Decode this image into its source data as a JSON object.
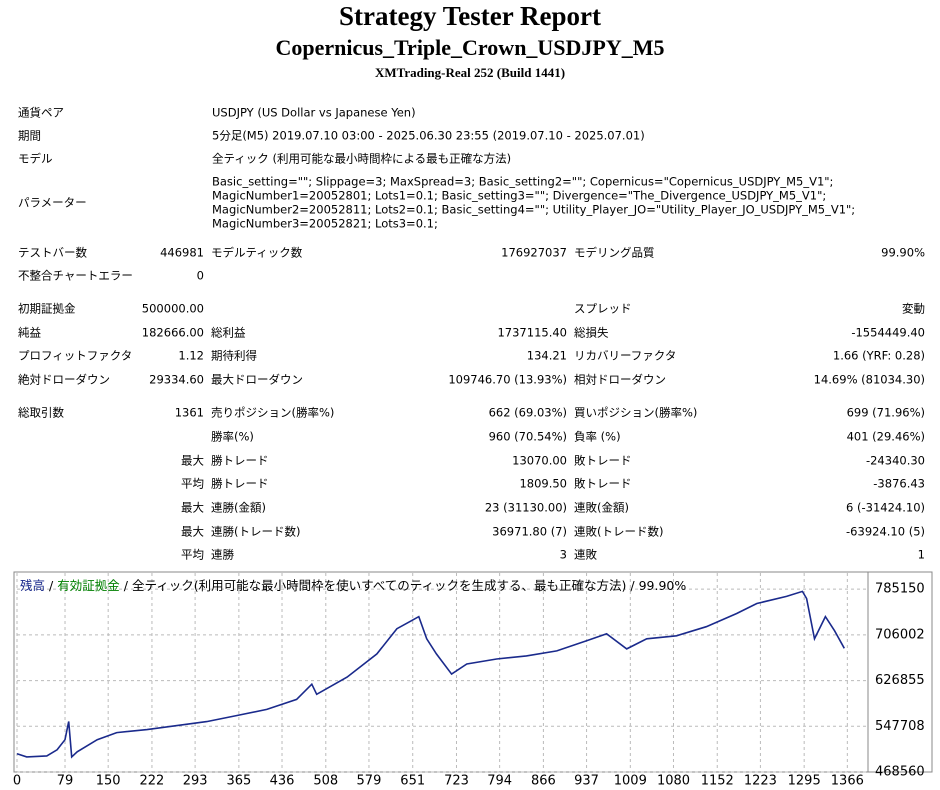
{
  "header": {
    "title": "Strategy Tester Report",
    "subtitle": "Copernicus_Triple_Crown_USDJPY_M5",
    "build": "XMTrading-Real 252 (Build 1441)"
  },
  "info": [
    [
      "通貨ペア",
      "USDJPY (US Dollar vs Japanese Yen)"
    ],
    [
      "期間",
      "5分足(M5) 2019.07.10 03:00 - 2025.06.30 23:55 (2019.07.10 - 2025.07.01)"
    ],
    [
      "モデル",
      "全ティック (利用可能な最小時間枠による最も正確な方法)"
    ]
  ],
  "parameters": {
    "label": "パラメーター",
    "lines": [
      "Basic_setting=\"\"; Slippage=3; MaxSpread=3; Basic_setting2=\"\"; Copernicus=\"Copernicus_USDJPY_M5_V1\";",
      "MagicNumber1=20052801; Lots1=0.1; Basic_setting3=\"\"; Divergence=\"The_Divergence_USDJPY_M5_V1\";",
      "MagicNumber2=20052811; Lots2=0.1; Basic_setting4=\"\"; Utility_Player_JO=\"Utility_Player_JO_USDJPY_M5_V1\";",
      "MagicNumber3=20052821; Lots3=0.1;"
    ]
  },
  "table": {
    "rows": [
      [
        "テストバー数",
        "446981",
        "モデルティック数",
        "176927037",
        "モデリング品質",
        "99.90%"
      ],
      [
        "不整合チャートエラー",
        "0",
        null,
        null,
        null,
        null
      ],
      [
        "初期証拠金",
        "500000.00",
        null,
        null,
        "スプレッド",
        "変動"
      ],
      [
        "純益",
        "182666.00",
        "総利益",
        "1737115.40",
        "総損失",
        "-1554449.40"
      ],
      [
        "プロフィットファクタ",
        "1.12",
        "期待利得",
        "134.21",
        "リカバリーファクタ",
        "1.66 (YRF: 0.28)"
      ],
      [
        "絶対ドローダウン",
        "29334.60",
        "最大ドローダウン",
        "109746.70 (13.93%)",
        "相対ドローダウン",
        "14.69% (81034.30)"
      ],
      [
        "総取引数",
        "1361",
        "売りポジション(勝率%)",
        "662 (69.03%)",
        "買いポジション(勝率%)",
        "699 (71.96%)"
      ],
      [
        null,
        null,
        "勝率(%)",
        "960 (70.54%)",
        "負率 (%)",
        "401 (29.46%)"
      ],
      [
        null,
        "最大",
        "勝トレード",
        "13070.00",
        "敗トレード",
        "-24340.30"
      ],
      [
        null,
        "平均",
        "勝トレード",
        "1809.50",
        "敗トレード",
        "-3876.43"
      ],
      [
        null,
        "最大",
        "連勝(金額)",
        "23 (31130.00)",
        "連敗(金額)",
        "6 (-31424.10)"
      ],
      [
        null,
        "最大",
        "連勝(トレード数)",
        "36971.80 (7)",
        "連敗(トレード数)",
        "-63924.10 (5)"
      ],
      [
        null,
        "平均",
        "連勝",
        "3",
        "連敗",
        "1"
      ]
    ]
  },
  "chart_data": {
    "type": "line",
    "legend_text": "全ティック(利用可能な最小時間枠を使いすべてのティックを生成する、最も正確な方法)",
    "quality": "99.90%",
    "separator": "/",
    "equity_label": {
      "name": "有効証拠金",
      "color": "#008000"
    },
    "x": [
      0,
      16,
      49,
      66,
      79,
      85,
      90,
      99,
      132,
      164,
      214,
      263,
      312,
      362,
      411,
      460,
      485,
      493,
      543,
      592,
      625,
      649,
      661,
      674,
      690,
      715,
      740,
      789,
      838,
      888,
      937,
      970,
      1003,
      1036,
      1085,
      1134,
      1184,
      1217,
      1266,
      1292,
      1299,
      1312,
      1330,
      1345,
      1361
    ],
    "series": [
      {
        "name": "残高",
        "color": "#1a2a8c",
        "values": [
          500000,
          494700,
          496500,
          507000,
          524500,
          556000,
          494700,
          503500,
          524500,
          536700,
          541900,
          548900,
          555900,
          566400,
          576900,
          594300,
          620600,
          603100,
          632800,
          673000,
          716600,
          730600,
          737600,
          699200,
          673000,
          638000,
          655500,
          664200,
          669500,
          678200,
          695700,
          707900,
          681700,
          699200,
          704400,
          720100,
          742900,
          760300,
          772500,
          781300,
          769000,
          699200,
          737600,
          713100,
          682666
        ]
      }
    ],
    "xlim": [
      0,
      1400
    ],
    "ylim": [
      468560,
      813100
    ],
    "xticks": [
      0,
      79,
      150,
      222,
      293,
      365,
      436,
      508,
      579,
      651,
      723,
      794,
      866,
      937,
      1009,
      1080,
      1152,
      1223,
      1295,
      1366
    ],
    "yticks": [
      468560,
      547708,
      626855,
      706002,
      785150
    ],
    "grid": true
  }
}
